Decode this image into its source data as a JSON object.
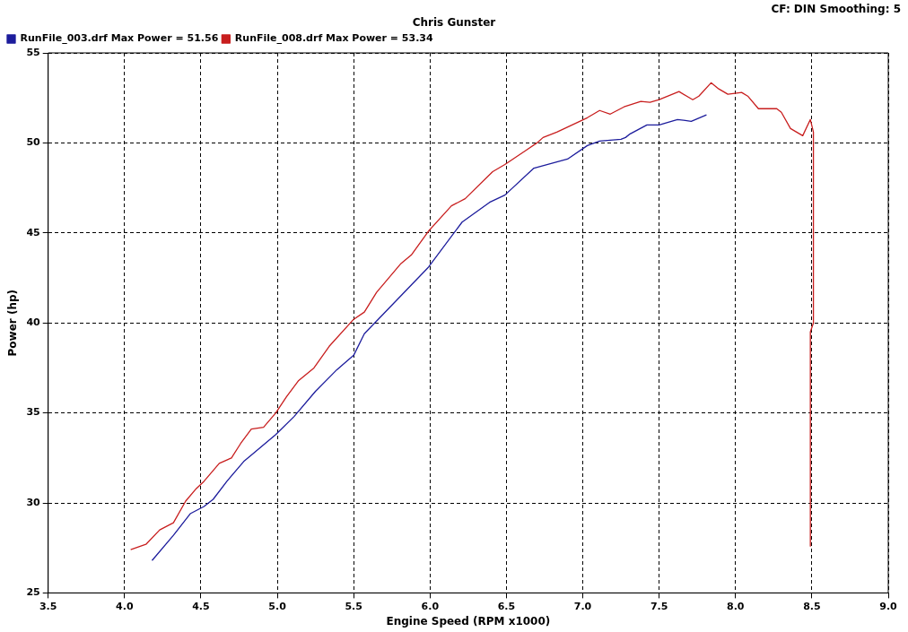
{
  "chart_data": {
    "type": "line",
    "title": "Chris Gunster",
    "xlabel": "Engine Speed (RPM x1000)",
    "ylabel": "Power (hp)",
    "annotations": [
      "CF: DIN  Smoothing: 5"
    ],
    "xlim": [
      3.5,
      9.0
    ],
    "ylim": [
      25,
      55
    ],
    "xticks": [
      {
        "value": 3.5,
        "label": "3.5"
      },
      {
        "value": 4,
        "label": "4.0"
      },
      {
        "value": 4.5,
        "label": "4.5"
      },
      {
        "value": 5,
        "label": "5.0"
      },
      {
        "value": 5.5,
        "label": "5.5"
      },
      {
        "value": 6,
        "label": "6.0"
      },
      {
        "value": 6.5,
        "label": "6.5"
      },
      {
        "value": 7,
        "label": "7.0"
      },
      {
        "value": 7.5,
        "label": "7.5"
      },
      {
        "value": 8,
        "label": "8.0"
      },
      {
        "value": 8.5,
        "label": "8.5"
      },
      {
        "value": 9,
        "label": "9.0"
      }
    ],
    "yticks": [
      25,
      30,
      35,
      40,
      45,
      50,
      55
    ],
    "grid": true,
    "legend": "top left",
    "marker": "none",
    "line_style": "solid",
    "series": [
      {
        "name": "RunFile_003.drf Max Power = 51.56",
        "color": "#1c1c9c",
        "x": [
          4.18,
          4.32,
          4.43,
          4.52,
          4.58,
          4.67,
          4.78,
          4.99,
          5.11,
          5.25,
          5.39,
          5.5,
          5.57,
          5.99,
          6.21,
          6.39,
          6.49,
          6.68,
          6.9,
          7.03,
          7.11,
          7.25,
          7.28,
          7.31,
          7.42,
          7.5,
          7.62,
          7.71,
          7.81
        ],
        "values": [
          26.8,
          28.2,
          29.4,
          29.8,
          30.2,
          31.2,
          32.3,
          33.8,
          34.8,
          36.2,
          37.4,
          38.2,
          39.4,
          43.1,
          45.6,
          46.7,
          47.1,
          48.6,
          49.1,
          49.85,
          50.1,
          50.2,
          50.3,
          50.5,
          51.0,
          51.0,
          51.3,
          51.2,
          51.56
        ]
      },
      {
        "name": "RunFile_008.drf Max Power = 53.34",
        "color": "#c81e1e",
        "x": [
          4.04,
          4.14,
          4.23,
          4.32,
          4.4,
          4.47,
          4.52,
          4.62,
          4.7,
          4.76,
          4.83,
          4.91,
          4.99,
          5.06,
          5.14,
          5.24,
          5.34,
          5.5,
          5.57,
          5.65,
          5.81,
          5.88,
          5.99,
          6.14,
          6.23,
          6.41,
          6.49,
          6.56,
          6.63,
          6.7,
          6.74,
          6.83,
          7.03,
          7.11,
          7.18,
          7.27,
          7.38,
          7.44,
          7.5,
          7.63,
          7.72,
          7.76,
          7.84,
          7.89,
          7.95,
          8.04,
          8.08,
          8.15,
          8.27,
          8.3,
          8.36,
          8.4,
          8.44,
          8.49,
          8.51,
          8.51,
          8.49,
          8.49
        ],
        "values": [
          27.4,
          27.7,
          28.5,
          28.9,
          30.1,
          30.8,
          31.2,
          32.2,
          32.5,
          33.3,
          34.1,
          34.2,
          35.0,
          35.9,
          36.8,
          37.5,
          38.7,
          40.2,
          40.6,
          41.7,
          43.3,
          43.8,
          45.1,
          46.5,
          46.9,
          48.4,
          48.8,
          49.2,
          49.6,
          50.0,
          50.3,
          50.6,
          51.4,
          51.8,
          51.6,
          52.0,
          52.3,
          52.25,
          52.4,
          52.85,
          52.4,
          52.6,
          53.34,
          53.0,
          52.7,
          52.8,
          52.6,
          51.9,
          51.9,
          51.7,
          50.8,
          50.6,
          50.4,
          51.3,
          50.6,
          40.0,
          39.5,
          27.6
        ]
      }
    ]
  }
}
